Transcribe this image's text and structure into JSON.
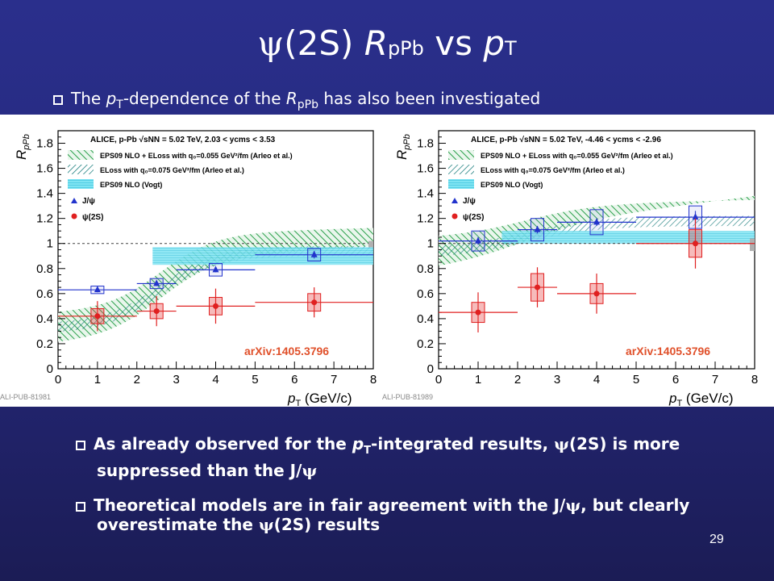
{
  "slide": {
    "title_psi": "ψ",
    "title_main": "(2S) ",
    "title_R": "R",
    "title_R_sub": "pPb",
    "title_vs": " vs ",
    "title_p": "p",
    "title_p_sub": "T",
    "page_number": "29"
  },
  "bullets": {
    "intro_1": "The ",
    "intro_p": "p",
    "intro_T": "T",
    "intro_2": "-dependence of the ",
    "intro_R": "R",
    "intro_Rsub": "pPb",
    "intro_3": " has also been investigated",
    "b2_1": "As already observed for the ",
    "b2_p": "p",
    "b2_T": "T",
    "b2_2": "-integrated results, ",
    "b2_psi": "ψ",
    "b2_3": "(2S) is more suppressed than the J/",
    "b2_psi2": "ψ",
    "b3_1": "Theoretical models are in fair agreement with the J/",
    "b3_psi": "ψ",
    "b3_2": ", but clearly overestimate the ",
    "b3_psi2": "ψ",
    "b3_3": "(2S) results"
  },
  "charts_text": {
    "arxiv": "arXiv:1405.3796",
    "ylabel_R": "R",
    "ylabel_sub": "pPb",
    "xlabel_p": "p",
    "xlabel_T": "T",
    "xlabel_unit": " (GeV/c)",
    "legend_eps_eloss": "EPS09 NLO + ELoss with q₀=0.055 GeV²/fm (Arleo et al.)",
    "legend_eloss": "ELoss with q₀=0.075 GeV²/fm (Arleo et al.)",
    "legend_eps": "EPS09 NLO (Vogt)",
    "legend_jpsi": "J/ψ",
    "legend_psi2s": "ψ(2S)"
  },
  "chart_data": [
    {
      "type": "scatter",
      "header": "ALICE, p-Pb √sNN = 5.02 TeV, 2.03 < ycms < 3.53",
      "publication_id": "ALI-PUB-81981",
      "xlim": [
        0,
        8
      ],
      "ylim": [
        0,
        1.9
      ],
      "xticks": [
        0,
        1,
        2,
        3,
        4,
        5,
        6,
        7,
        8
      ],
      "yticks": [
        0,
        0.2,
        0.4,
        0.6,
        0.8,
        1,
        1.2,
        1.4,
        1.6,
        1.8
      ],
      "series": [
        {
          "name": "J/ψ",
          "color": "#2233cc",
          "x": [
            1,
            2.5,
            4,
            6.5
          ],
          "y": [
            0.63,
            0.68,
            0.79,
            0.91
          ],
          "xerr": [
            1,
            0.5,
            1,
            1.5
          ],
          "stat": [
            0.02,
            0.02,
            0.02,
            0.03
          ],
          "syst": [
            0.03,
            0.04,
            0.05,
            0.05
          ]
        },
        {
          "name": "ψ(2S)",
          "color": "#e02020",
          "x": [
            1,
            2.5,
            4,
            6.5
          ],
          "y": [
            0.42,
            0.46,
            0.5,
            0.53
          ],
          "xerr": [
            1,
            0.5,
            1,
            1.5
          ],
          "stat": [
            0.12,
            0.12,
            0.14,
            0.12
          ],
          "syst": [
            0.06,
            0.06,
            0.07,
            0.07
          ]
        }
      ]
    },
    {
      "type": "scatter",
      "header": "ALICE, p-Pb √sNN = 5.02 TeV, -4.46 < ycms < -2.96",
      "publication_id": "ALI-PUB-81989",
      "xlim": [
        0,
        8
      ],
      "ylim": [
        0,
        1.9
      ],
      "xticks": [
        0,
        1,
        2,
        3,
        4,
        5,
        6,
        7,
        8
      ],
      "yticks": [
        0,
        0.2,
        0.4,
        0.6,
        0.8,
        1,
        1.2,
        1.4,
        1.6,
        1.8
      ],
      "series": [
        {
          "name": "J/ψ",
          "color": "#2233cc",
          "x": [
            1,
            2.5,
            4,
            6.5
          ],
          "y": [
            1.02,
            1.11,
            1.17,
            1.21
          ],
          "xerr": [
            1,
            0.5,
            1,
            1.5
          ],
          "stat": [
            0.03,
            0.03,
            0.03,
            0.05
          ],
          "syst": [
            0.08,
            0.09,
            0.1,
            0.09
          ]
        },
        {
          "name": "ψ(2S)",
          "color": "#e02020",
          "x": [
            1,
            2.5,
            4,
            6.5
          ],
          "y": [
            0.45,
            0.65,
            0.6,
            1.0
          ],
          "xerr": [
            1,
            0.5,
            1,
            1.5
          ],
          "stat": [
            0.16,
            0.16,
            0.16,
            0.2
          ],
          "syst": [
            0.08,
            0.11,
            0.08,
            0.11
          ]
        }
      ]
    }
  ]
}
